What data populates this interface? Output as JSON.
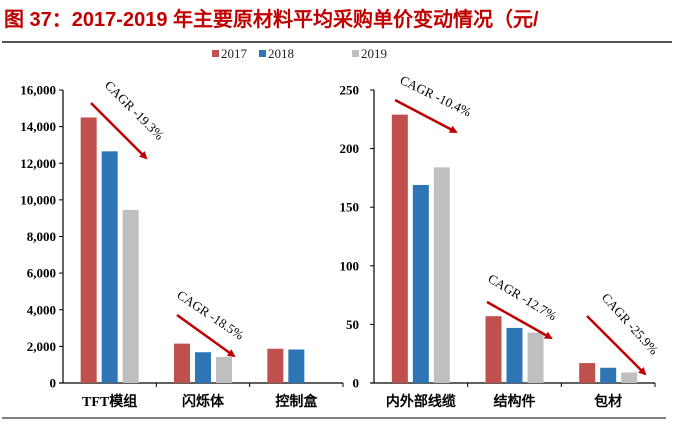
{
  "title": "图 37：2017-2019 年主要原材料平均采购单价变动情况（元/",
  "colors": {
    "2017": "#c0504d",
    "2018": "#2e75b6",
    "2019": "#bfbfbf",
    "title": "#c00000",
    "arrow": "#c00000"
  },
  "chart_data": [
    {
      "type": "bar",
      "legend": [
        "2017",
        "2018",
        "2019"
      ],
      "legend_position": "top",
      "categories": [
        "TFT模组",
        "闪烁体",
        "控制盒"
      ],
      "ylim": [
        0,
        16000
      ],
      "yticks": [
        "0",
        "2,000",
        "4,000",
        "6,000",
        "8,000",
        "10,000",
        "12,000",
        "14,000",
        "16,000"
      ],
      "grid": false,
      "series": [
        {
          "name": "2017",
          "values": [
            14500,
            2150,
            1870
          ]
        },
        {
          "name": "2018",
          "values": [
            12650,
            1680,
            1830
          ]
        },
        {
          "name": "2019",
          "values": [
            9450,
            1420,
            null
          ]
        }
      ],
      "annotations": [
        "CAGR -19.3%",
        "CAGR -18.5%"
      ]
    },
    {
      "type": "bar",
      "categories": [
        "内外部线缆",
        "结构件",
        "包材"
      ],
      "ylim": [
        0,
        250
      ],
      "yticks": [
        "0",
        "50",
        "100",
        "150",
        "200",
        "250"
      ],
      "grid": false,
      "series": [
        {
          "name": "2017",
          "values": [
            229,
            57,
            17
          ]
        },
        {
          "name": "2018",
          "values": [
            169,
            47,
            13
          ]
        },
        {
          "name": "2019",
          "values": [
            184,
            43,
            9
          ]
        }
      ],
      "annotations": [
        "CAGR -10.4%",
        "CAGR -12.7%",
        "CAGR -25.9%"
      ]
    }
  ]
}
